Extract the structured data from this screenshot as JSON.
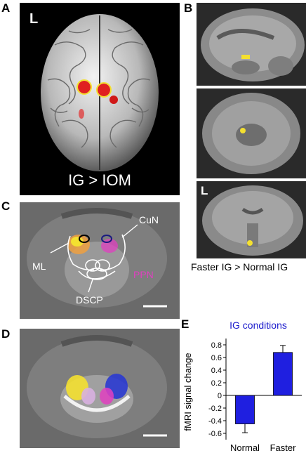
{
  "panels": {
    "A": {
      "letter": "A",
      "orientation": "L",
      "contrast": "IG > IOM"
    },
    "B": {
      "letter": "B",
      "orientation": "L",
      "contrast": "Faster IG > Normal IG"
    },
    "C": {
      "letter": "C",
      "labels": {
        "ml": "ML",
        "cun": "CuN",
        "dscp": "DSCP",
        "ppn": "PPN"
      }
    },
    "D": {
      "letter": "D"
    },
    "E": {
      "letter": "E"
    }
  },
  "colors": {
    "bar": "#1f1fe0",
    "legend_title": "#1a1acc",
    "ppn": "#e040c0",
    "activation_red": "#e02020",
    "activation_yellow": "#f4e030"
  },
  "chart_data": {
    "type": "bar",
    "title": "IG conditions",
    "ylabel": "fMRI signal change",
    "categories": [
      "Normal",
      "Faster"
    ],
    "values": [
      -0.45,
      0.68
    ],
    "errors": [
      0.14,
      0.11
    ],
    "ylim": [
      -0.7,
      0.9
    ],
    "yticks": [
      -0.6,
      -0.4,
      -0.2,
      0,
      0.2,
      0.4,
      0.6,
      0.8
    ],
    "ytick_labels": [
      "-0.6",
      "-0.4",
      "-0.2",
      "0",
      "0.2",
      "0.4",
      "0.6",
      "0.8"
    ]
  }
}
